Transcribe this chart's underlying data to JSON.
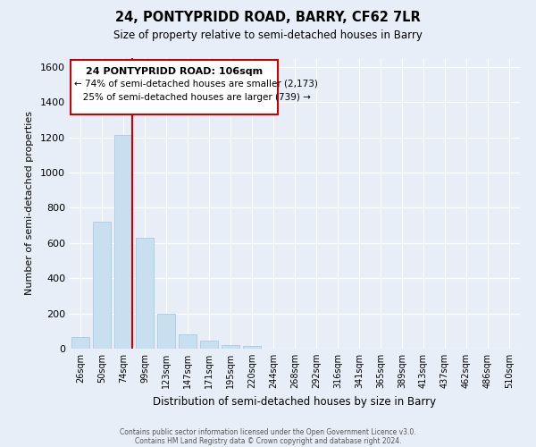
{
  "title": "24, PONTYPRIDD ROAD, BARRY, CF62 7LR",
  "subtitle": "Size of property relative to semi-detached houses in Barry",
  "xlabel": "Distribution of semi-detached houses by size in Barry",
  "ylabel": "Number of semi-detached properties",
  "bar_labels": [
    "26sqm",
    "50sqm",
    "74sqm",
    "99sqm",
    "123sqm",
    "147sqm",
    "171sqm",
    "195sqm",
    "220sqm",
    "244sqm",
    "268sqm",
    "292sqm",
    "316sqm",
    "341sqm",
    "365sqm",
    "389sqm",
    "413sqm",
    "437sqm",
    "462sqm",
    "486sqm",
    "510sqm"
  ],
  "bar_heights": [
    65,
    720,
    1215,
    630,
    200,
    80,
    45,
    20,
    15,
    0,
    0,
    0,
    0,
    0,
    0,
    0,
    0,
    0,
    0,
    0,
    0
  ],
  "highlight_line_after_index": 2,
  "bar_color": "#c8dff0",
  "bar_edge_color": "#a0c4e0",
  "highlight_line_color": "#cc0000",
  "ylim": [
    0,
    1650
  ],
  "yticks": [
    0,
    200,
    400,
    600,
    800,
    1000,
    1200,
    1400,
    1600
  ],
  "annotation_title": "24 PONTYPRIDD ROAD: 106sqm",
  "annotation_line1": "← 74% of semi-detached houses are smaller (2,173)",
  "annotation_line2": "   25% of semi-detached houses are larger (739) →",
  "footer1": "Contains HM Land Registry data © Crown copyright and database right 2024.",
  "footer2": "Contains public sector information licensed under the Open Government Licence v3.0.",
  "background_color": "#e8eef8",
  "grid_color": "#ffffff",
  "ann_box_color": "#ffffff",
  "ann_border_color": "#cc0000"
}
